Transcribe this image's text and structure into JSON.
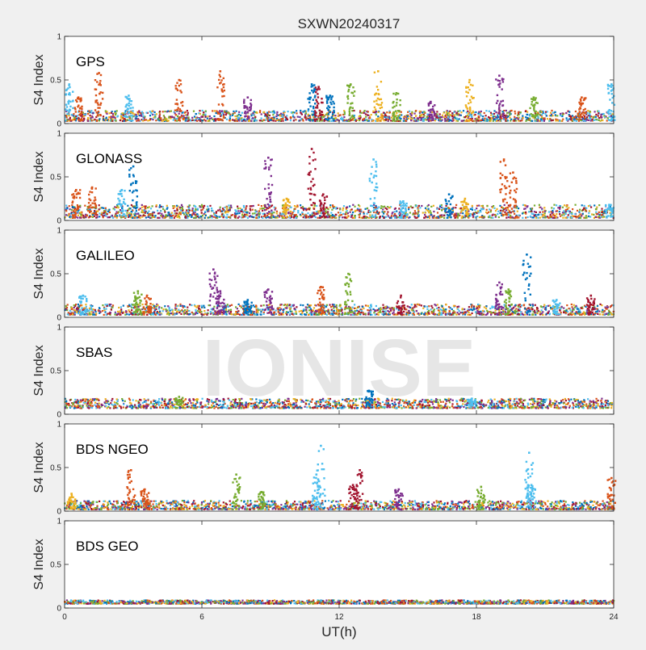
{
  "figure": {
    "title": "SXWN20240317",
    "watermark": "IONISE",
    "xlabel": "UT(h)"
  },
  "colors": {
    "figure_bg": "#f0f0f0",
    "axes_bg": "#ffffff",
    "axis": "#262626",
    "watermark": "#e6e6e6",
    "series_palette": [
      "#0072BD",
      "#D95319",
      "#EDB120",
      "#7E2F8E",
      "#77AC30",
      "#4DBEEE",
      "#A2142F"
    ]
  },
  "chart_data": [
    {
      "type": "scatter",
      "label": "GPS",
      "ylabel": "S4 Index",
      "xlim": [
        0,
        24
      ],
      "ylim": [
        0,
        1
      ],
      "xticks": [
        0,
        6,
        12,
        18,
        24
      ],
      "yticks": [
        0,
        0.5,
        1
      ],
      "ytick_labels": [
        "0",
        "0.5",
        "1"
      ],
      "baseline": [
        0.03,
        0.15
      ],
      "spikes": [
        {
          "x": 0.2,
          "y": 0.45,
          "c": 5
        },
        {
          "x": 0.6,
          "y": 0.3,
          "c": 1
        },
        {
          "x": 1.5,
          "y": 0.58,
          "c": 1
        },
        {
          "x": 2.8,
          "y": 0.32,
          "c": 5
        },
        {
          "x": 5.0,
          "y": 0.5,
          "c": 1
        },
        {
          "x": 6.8,
          "y": 0.6,
          "c": 1
        },
        {
          "x": 8.0,
          "y": 0.3,
          "c": 3
        },
        {
          "x": 10.8,
          "y": 0.45,
          "c": 0
        },
        {
          "x": 11.1,
          "y": 0.42,
          "c": 6
        },
        {
          "x": 11.6,
          "y": 0.32,
          "c": 0
        },
        {
          "x": 12.5,
          "y": 0.45,
          "c": 4
        },
        {
          "x": 13.7,
          "y": 0.6,
          "c": 2
        },
        {
          "x": 14.5,
          "y": 0.35,
          "c": 4
        },
        {
          "x": 16.0,
          "y": 0.25,
          "c": 3
        },
        {
          "x": 17.7,
          "y": 0.5,
          "c": 2
        },
        {
          "x": 19.0,
          "y": 0.55,
          "c": 3
        },
        {
          "x": 20.5,
          "y": 0.3,
          "c": 4
        },
        {
          "x": 22.6,
          "y": 0.3,
          "c": 1
        },
        {
          "x": 23.9,
          "y": 0.45,
          "c": 5
        }
      ]
    },
    {
      "type": "scatter",
      "label": "GLONASS",
      "ylabel": "S4 Index",
      "xlim": [
        0,
        24
      ],
      "ylim": [
        0,
        1
      ],
      "xticks": [
        0,
        6,
        12,
        18,
        24
      ],
      "yticks": [
        0,
        0.5,
        1
      ],
      "ytick_labels": [
        "0",
        "0.5",
        "1"
      ],
      "baseline": [
        0.03,
        0.18
      ],
      "spikes": [
        {
          "x": 0.5,
          "y": 0.35,
          "c": 1
        },
        {
          "x": 1.2,
          "y": 0.38,
          "c": 1
        },
        {
          "x": 2.5,
          "y": 0.35,
          "c": 5
        },
        {
          "x": 3.0,
          "y": 0.62,
          "c": 0
        },
        {
          "x": 8.9,
          "y": 0.72,
          "c": 3
        },
        {
          "x": 9.7,
          "y": 0.25,
          "c": 2
        },
        {
          "x": 10.8,
          "y": 0.82,
          "c": 6
        },
        {
          "x": 11.3,
          "y": 0.3,
          "c": 6
        },
        {
          "x": 13.5,
          "y": 0.7,
          "c": 5
        },
        {
          "x": 14.8,
          "y": 0.22,
          "c": 5
        },
        {
          "x": 16.8,
          "y": 0.3,
          "c": 0
        },
        {
          "x": 17.5,
          "y": 0.25,
          "c": 2
        },
        {
          "x": 19.2,
          "y": 0.7,
          "c": 1
        },
        {
          "x": 19.6,
          "y": 0.55,
          "c": 1
        },
        {
          "x": 23.8,
          "y": 0.18,
          "c": 5
        }
      ]
    },
    {
      "type": "scatter",
      "label": "GALILEO",
      "ylabel": "S4 Index",
      "xlim": [
        0,
        24
      ],
      "ylim": [
        0,
        1
      ],
      "xticks": [
        0,
        6,
        12,
        18,
        24
      ],
      "yticks": [
        0,
        0.5,
        1
      ],
      "ytick_labels": [
        "0",
        "0.5",
        "1"
      ],
      "baseline": [
        0.03,
        0.15
      ],
      "spikes": [
        {
          "x": 0.8,
          "y": 0.25,
          "c": 5
        },
        {
          "x": 3.2,
          "y": 0.3,
          "c": 4
        },
        {
          "x": 3.6,
          "y": 0.25,
          "c": 1
        },
        {
          "x": 6.5,
          "y": 0.55,
          "c": 3
        },
        {
          "x": 6.8,
          "y": 0.3,
          "c": 3
        },
        {
          "x": 8.0,
          "y": 0.2,
          "c": 0
        },
        {
          "x": 8.9,
          "y": 0.32,
          "c": 3
        },
        {
          "x": 11.2,
          "y": 0.35,
          "c": 1
        },
        {
          "x": 12.4,
          "y": 0.5,
          "c": 4
        },
        {
          "x": 14.7,
          "y": 0.25,
          "c": 6
        },
        {
          "x": 19.0,
          "y": 0.4,
          "c": 3
        },
        {
          "x": 19.4,
          "y": 0.32,
          "c": 4
        },
        {
          "x": 20.2,
          "y": 0.72,
          "c": 0
        },
        {
          "x": 21.5,
          "y": 0.2,
          "c": 5
        },
        {
          "x": 23.0,
          "y": 0.25,
          "c": 6
        }
      ]
    },
    {
      "type": "scatter",
      "label": "SBAS",
      "ylabel": "S4 Index",
      "xlim": [
        0,
        24
      ],
      "ylim": [
        0,
        1
      ],
      "xticks": [
        0,
        6,
        12,
        18,
        24
      ],
      "yticks": [
        0,
        0.5,
        1
      ],
      "ytick_labels": [
        "0",
        "0.5",
        "1"
      ],
      "baseline": [
        0.07,
        0.18
      ],
      "spikes": [
        {
          "x": 5.0,
          "y": 0.2,
          "c": 4
        },
        {
          "x": 13.3,
          "y": 0.27,
          "c": 0
        },
        {
          "x": 17.8,
          "y": 0.18,
          "c": 5
        }
      ]
    },
    {
      "type": "scatter",
      "label": "BDS NGEO",
      "ylabel": "S4 Index",
      "xlim": [
        0,
        24
      ],
      "ylim": [
        0,
        1
      ],
      "xticks": [
        0,
        6,
        12,
        18,
        24
      ],
      "yticks": [
        0,
        0.5,
        1
      ],
      "ytick_labels": [
        "0",
        "0.5",
        "1"
      ],
      "baseline": [
        0.02,
        0.12
      ],
      "spikes": [
        {
          "x": 0.3,
          "y": 0.2,
          "c": 2
        },
        {
          "x": 2.9,
          "y": 0.47,
          "c": 1
        },
        {
          "x": 3.5,
          "y": 0.25,
          "c": 1
        },
        {
          "x": 7.5,
          "y": 0.42,
          "c": 4
        },
        {
          "x": 8.6,
          "y": 0.22,
          "c": 4
        },
        {
          "x": 11.0,
          "y": 0.42,
          "c": 5
        },
        {
          "x": 11.2,
          "y": 0.75,
          "c": 5
        },
        {
          "x": 12.9,
          "y": 0.47,
          "c": 6
        },
        {
          "x": 12.6,
          "y": 0.3,
          "c": 6
        },
        {
          "x": 14.6,
          "y": 0.25,
          "c": 3
        },
        {
          "x": 18.2,
          "y": 0.28,
          "c": 4
        },
        {
          "x": 20.3,
          "y": 0.67,
          "c": 5
        },
        {
          "x": 20.4,
          "y": 0.3,
          "c": 5
        },
        {
          "x": 23.9,
          "y": 0.38,
          "c": 1
        }
      ]
    },
    {
      "type": "scatter",
      "label": "BDS GEO",
      "ylabel": "S4 Index",
      "xlim": [
        0,
        24
      ],
      "ylim": [
        0,
        1
      ],
      "xticks": [
        0,
        6,
        12,
        18,
        24
      ],
      "yticks": [
        0,
        0.5,
        1
      ],
      "ytick_labels": [
        "0",
        "0.5",
        "1"
      ],
      "baseline": [
        0.05,
        0.09
      ],
      "spikes": []
    }
  ]
}
